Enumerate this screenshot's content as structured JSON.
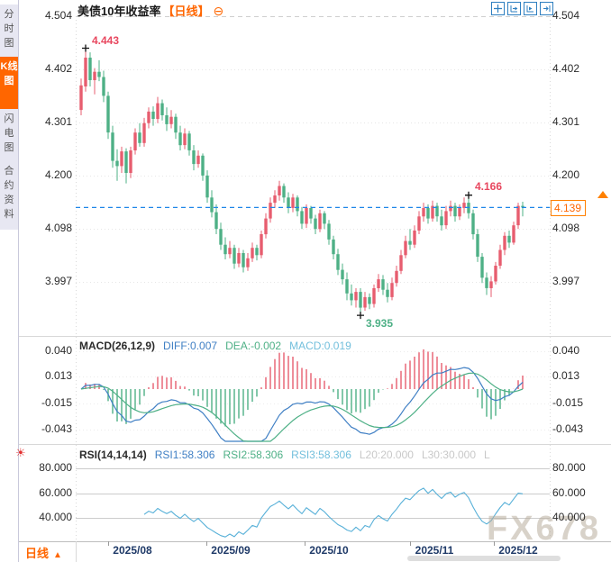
{
  "sidebar": {
    "tabs": [
      {
        "label": "分时图",
        "selected": false
      },
      {
        "label": "K线图",
        "selected": true
      },
      {
        "label": "闪电图",
        "selected": false
      },
      {
        "label": "合约资料",
        "selected": false
      }
    ]
  },
  "header": {
    "title": "美债10年收益率",
    "period_tag": "【日线】",
    "collapse_glyph": "⊖"
  },
  "toolbar": {
    "icons": [
      "crosshair",
      "fit-horizontal",
      "auto-scroll",
      "pan-right"
    ]
  },
  "price_panel": {
    "axis_labels": [
      "4.504",
      "4.402",
      "4.301",
      "4.200",
      "4.098",
      "3.997"
    ],
    "current_price_label": "4.139",
    "annotations": {
      "high": "4.443",
      "swing_high": "4.166",
      "low": "3.935"
    }
  },
  "macd_panel": {
    "axis_labels": [
      "0.040",
      "0.013",
      "-0.015",
      "-0.043"
    ],
    "header": [
      {
        "text": "MACD(26,12,9)",
        "color": "#2b2b2b"
      },
      {
        "text": "DIFF:0.007",
        "color": "#3f7fc4"
      },
      {
        "text": "DEA:-0.002",
        "color": "#4eb086"
      },
      {
        "text": "MACD:0.019",
        "color": "#72bfdc"
      }
    ]
  },
  "rsi_panel": {
    "axis_labels": [
      "80.000",
      "60.000",
      "40.000"
    ],
    "header": [
      {
        "text": "RSI(14,14,14)",
        "color": "#2b2b2b"
      },
      {
        "text": "RSI1:58.306",
        "color": "#3f7fc4"
      },
      {
        "text": "RSI2:58.306",
        "color": "#4eb086"
      },
      {
        "text": "RSI3:58.306",
        "color": "#72bfdc"
      },
      {
        "text": "L20:20.000",
        "color": "#c8c8c8"
      },
      {
        "text": "L30:30.000",
        "color": "#c8c8c8"
      },
      {
        "text": "L",
        "color": "#c8c8c8"
      }
    ]
  },
  "bottom_bar": {
    "period_label": "日线",
    "arrow_glyph": "▲",
    "dates": [
      "2025/08",
      "2025/09",
      "2025/10",
      "2025/11",
      "2025/12"
    ]
  },
  "icons": {
    "settings_glyph": "☀"
  },
  "watermark": "FX678",
  "colors": {
    "up": "#e75d6f",
    "down": "#4eb086",
    "diff_line": "#3f7fc4",
    "dea_line": "#4eb086",
    "rsi_line": "#57b0d8",
    "accent_orange": "#ff6600",
    "icon_blue": "#2e7fc0",
    "current_price_line": "#1e86e8",
    "ann_high": "#e8475f",
    "ann_low": "#4eb086",
    "grid_light": "#e6e6e6",
    "grid_mid": "#cccccc",
    "separator": "#d8d8d8"
  },
  "chart_data": {
    "type": "candlestick",
    "panels": [
      "price",
      "MACD",
      "RSI"
    ],
    "title": "美债10年收益率 日线",
    "price_axis_ticks": [
      4.504,
      4.402,
      4.301,
      4.2,
      4.098,
      3.997
    ],
    "month_ticks": [
      "2025/08",
      "2025/09",
      "2025/10",
      "2025/11",
      "2025/12"
    ],
    "key_points": {
      "high": {
        "index": 1,
        "value": 4.443
      },
      "swing_high": {
        "index": 86,
        "value": 4.166
      },
      "low": {
        "index": 62,
        "value": 3.935
      },
      "last_close": 4.139
    },
    "indicators": {
      "macd": {
        "params": [
          26,
          12,
          9
        ],
        "diff": 0.007,
        "dea": -0.002,
        "macd": 0.019
      },
      "rsi": {
        "params": [
          14,
          14,
          14
        ],
        "rsi1": 58.306,
        "rsi2": 58.306,
        "rsi3": 58.306,
        "l20": 20.0,
        "l30": 30.0
      },
      "macd_axis_ticks": [
        0.04,
        0.013,
        -0.015,
        -0.043
      ],
      "rsi_axis_ticks": [
        80.0,
        60.0,
        40.0
      ]
    },
    "candles": [
      [
        4.325,
        4.385,
        4.315,
        4.372
      ],
      [
        4.37,
        4.443,
        4.36,
        4.425
      ],
      [
        4.425,
        4.435,
        4.37,
        4.382
      ],
      [
        4.382,
        4.405,
        4.355,
        4.398
      ],
      [
        4.398,
        4.42,
        4.38,
        4.388
      ],
      [
        4.388,
        4.4,
        4.34,
        4.352
      ],
      [
        4.352,
        4.36,
        4.27,
        4.282
      ],
      [
        4.282,
        4.295,
        4.215,
        4.228
      ],
      [
        4.228,
        4.25,
        4.19,
        4.218
      ],
      [
        4.218,
        4.255,
        4.205,
        4.246
      ],
      [
        4.246,
        4.252,
        4.185,
        4.205
      ],
      [
        4.205,
        4.255,
        4.195,
        4.248
      ],
      [
        4.248,
        4.29,
        4.24,
        4.282
      ],
      [
        4.282,
        4.3,
        4.255,
        4.262
      ],
      [
        4.262,
        4.31,
        4.255,
        4.3
      ],
      [
        4.3,
        4.33,
        4.29,
        4.322
      ],
      [
        4.322,
        4.332,
        4.295,
        4.308
      ],
      [
        4.308,
        4.35,
        4.3,
        4.338
      ],
      [
        4.338,
        4.345,
        4.305,
        4.315
      ],
      [
        4.315,
        4.33,
        4.285,
        4.298
      ],
      [
        4.298,
        4.325,
        4.29,
        4.312
      ],
      [
        4.312,
        4.318,
        4.27,
        4.282
      ],
      [
        4.282,
        4.295,
        4.248,
        4.258
      ],
      [
        4.258,
        4.29,
        4.25,
        4.28
      ],
      [
        4.28,
        4.285,
        4.238,
        4.248
      ],
      [
        4.248,
        4.258,
        4.21,
        4.222
      ],
      [
        4.222,
        4.248,
        4.215,
        4.238
      ],
      [
        4.238,
        4.242,
        4.19,
        4.2
      ],
      [
        4.2,
        4.21,
        4.148,
        4.158
      ],
      [
        4.158,
        4.172,
        4.12,
        4.13
      ],
      [
        4.13,
        4.145,
        4.088,
        4.098
      ],
      [
        4.098,
        4.11,
        4.058,
        4.068
      ],
      [
        4.068,
        4.082,
        4.04,
        4.05
      ],
      [
        4.05,
        4.075,
        4.042,
        4.062
      ],
      [
        4.062,
        4.068,
        4.022,
        4.032
      ],
      [
        4.032,
        4.062,
        4.025,
        4.052
      ],
      [
        4.052,
        4.058,
        4.015,
        4.025
      ],
      [
        4.025,
        4.052,
        4.018,
        4.042
      ],
      [
        4.042,
        4.072,
        4.035,
        4.062
      ],
      [
        4.062,
        4.068,
        4.038,
        4.048
      ],
      [
        4.048,
        4.095,
        4.042,
        4.088
      ],
      [
        4.088,
        4.128,
        4.08,
        4.118
      ],
      [
        4.118,
        4.158,
        4.11,
        4.148
      ],
      [
        4.148,
        4.172,
        4.138,
        4.162
      ],
      [
        4.162,
        4.19,
        4.152,
        4.18
      ],
      [
        4.18,
        4.185,
        4.148,
        4.158
      ],
      [
        4.158,
        4.168,
        4.128,
        4.138
      ],
      [
        4.138,
        4.165,
        4.13,
        4.158
      ],
      [
        4.158,
        4.162,
        4.122,
        4.132
      ],
      [
        4.132,
        4.14,
        4.098,
        4.108
      ],
      [
        4.108,
        4.145,
        4.1,
        4.138
      ],
      [
        4.138,
        4.142,
        4.108,
        4.118
      ],
      [
        4.118,
        4.125,
        4.088,
        4.098
      ],
      [
        4.098,
        4.135,
        4.092,
        4.128
      ],
      [
        4.128,
        4.132,
        4.098,
        4.108
      ],
      [
        4.108,
        4.115,
        4.068,
        4.078
      ],
      [
        4.078,
        4.085,
        4.04,
        4.05
      ],
      [
        4.05,
        4.06,
        4.01,
        4.02
      ],
      [
        4.02,
        4.032,
        3.992,
        4.002
      ],
      [
        4.002,
        4.015,
        3.962,
        3.975
      ],
      [
        3.975,
        3.992,
        3.952,
        3.962
      ],
      [
        3.962,
        3.985,
        3.948,
        3.978
      ],
      [
        3.978,
        3.985,
        3.935,
        3.948
      ],
      [
        3.948,
        3.978,
        3.942,
        3.968
      ],
      [
        3.968,
        3.975,
        3.945,
        3.955
      ],
      [
        3.955,
        3.992,
        3.948,
        3.985
      ],
      [
        3.985,
        4.012,
        3.978,
        4.002
      ],
      [
        4.002,
        4.01,
        3.972,
        3.982
      ],
      [
        3.982,
        3.995,
        3.958,
        3.968
      ],
      [
        3.968,
        4.005,
        3.962,
        3.995
      ],
      [
        3.995,
        4.028,
        3.988,
        4.018
      ],
      [
        4.018,
        4.058,
        4.012,
        4.048
      ],
      [
        4.048,
        4.085,
        4.042,
        4.075
      ],
      [
        4.075,
        4.098,
        4.058,
        4.068
      ],
      [
        4.068,
        4.105,
        4.062,
        4.095
      ],
      [
        4.095,
        4.132,
        4.088,
        4.122
      ],
      [
        4.122,
        4.148,
        4.112,
        4.138
      ],
      [
        4.138,
        4.145,
        4.108,
        4.118
      ],
      [
        4.118,
        4.152,
        4.112,
        4.142
      ],
      [
        4.142,
        4.148,
        4.112,
        4.122
      ],
      [
        4.122,
        4.135,
        4.095,
        4.105
      ],
      [
        4.105,
        4.142,
        4.098,
        4.132
      ],
      [
        4.132,
        4.152,
        4.122,
        4.142
      ],
      [
        4.142,
        4.148,
        4.112,
        4.122
      ],
      [
        4.122,
        4.145,
        4.115,
        4.138
      ],
      [
        4.138,
        4.158,
        4.128,
        4.148
      ],
      [
        4.148,
        4.166,
        4.118,
        4.128
      ],
      [
        4.128,
        4.135,
        4.078,
        4.088
      ],
      [
        4.088,
        4.098,
        4.035,
        4.045
      ],
      [
        4.045,
        4.052,
        3.995,
        4.005
      ],
      [
        4.005,
        4.015,
        3.972,
        3.985
      ],
      [
        3.985,
        4.008,
        3.968,
        3.998
      ],
      [
        3.998,
        4.035,
        3.992,
        4.028
      ],
      [
        4.028,
        4.068,
        4.022,
        4.058
      ],
      [
        4.058,
        4.092,
        4.048,
        4.085
      ],
      [
        4.085,
        4.095,
        4.062,
        4.072
      ],
      [
        4.072,
        4.112,
        4.068,
        4.105
      ],
      [
        4.105,
        4.148,
        4.098,
        4.142
      ],
      [
        4.142,
        4.15,
        4.122,
        4.139
      ]
    ]
  }
}
